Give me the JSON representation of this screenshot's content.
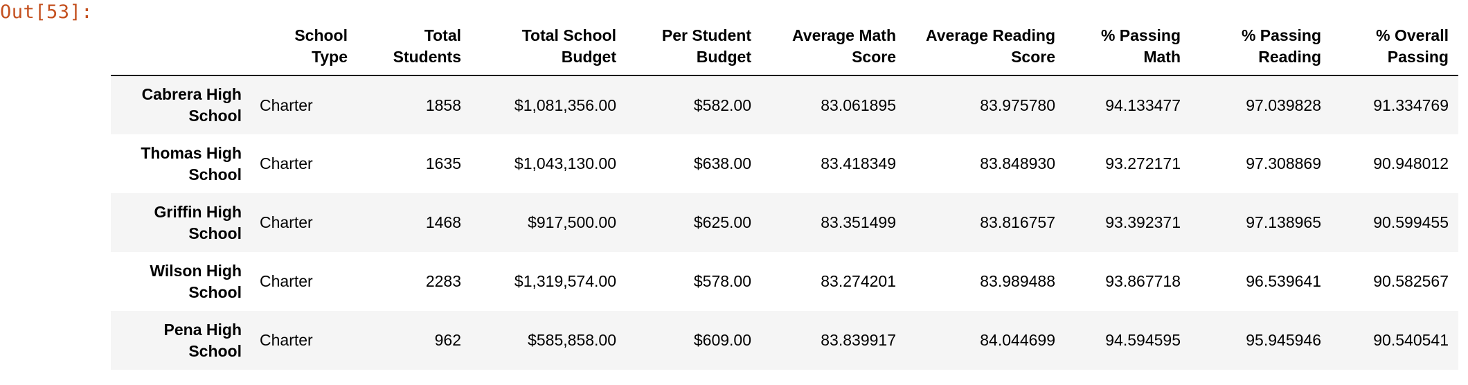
{
  "cell": {
    "out_prompt": "Out[53]:"
  },
  "table": {
    "headers": [
      {
        "line1": "",
        "line2": ""
      },
      {
        "line1": "School",
        "line2": "Type"
      },
      {
        "line1": "Total",
        "line2": "Students"
      },
      {
        "line1": "Total School",
        "line2": "Budget"
      },
      {
        "line1": "Per Student",
        "line2": "Budget"
      },
      {
        "line1": "Average Math",
        "line2": "Score"
      },
      {
        "line1": "Average Reading",
        "line2": "Score"
      },
      {
        "line1": "% Passing",
        "line2": "Math"
      },
      {
        "line1": "% Passing",
        "line2": "Reading"
      },
      {
        "line1": "% Overall",
        "line2": "Passing"
      }
    ],
    "rows": [
      {
        "name_line1": "Cabrera High",
        "name_line2": "School",
        "school_type": "Charter",
        "total_students": "1858",
        "total_budget": "$1,081,356.00",
        "per_student_budget": "$582.00",
        "avg_math": "83.061895",
        "avg_reading": "83.975780",
        "pct_math": "94.133477",
        "pct_reading": "97.039828",
        "pct_overall": "91.334769"
      },
      {
        "name_line1": "Thomas High",
        "name_line2": "School",
        "school_type": "Charter",
        "total_students": "1635",
        "total_budget": "$1,043,130.00",
        "per_student_budget": "$638.00",
        "avg_math": "83.418349",
        "avg_reading": "83.848930",
        "pct_math": "93.272171",
        "pct_reading": "97.308869",
        "pct_overall": "90.948012"
      },
      {
        "name_line1": "Griffin High",
        "name_line2": "School",
        "school_type": "Charter",
        "total_students": "1468",
        "total_budget": "$917,500.00",
        "per_student_budget": "$625.00",
        "avg_math": "83.351499",
        "avg_reading": "83.816757",
        "pct_math": "93.392371",
        "pct_reading": "97.138965",
        "pct_overall": "90.599455"
      },
      {
        "name_line1": "Wilson High",
        "name_line2": "School",
        "school_type": "Charter",
        "total_students": "2283",
        "total_budget": "$1,319,574.00",
        "per_student_budget": "$578.00",
        "avg_math": "83.274201",
        "avg_reading": "83.989488",
        "pct_math": "93.867718",
        "pct_reading": "96.539641",
        "pct_overall": "90.582567"
      },
      {
        "name_line1": "Pena High",
        "name_line2": "School",
        "school_type": "Charter",
        "total_students": "962",
        "total_budget": "$585,858.00",
        "per_student_budget": "$609.00",
        "avg_math": "83.839917",
        "avg_reading": "84.044699",
        "pct_math": "94.594595",
        "pct_reading": "95.945946",
        "pct_overall": "90.540541"
      }
    ]
  }
}
